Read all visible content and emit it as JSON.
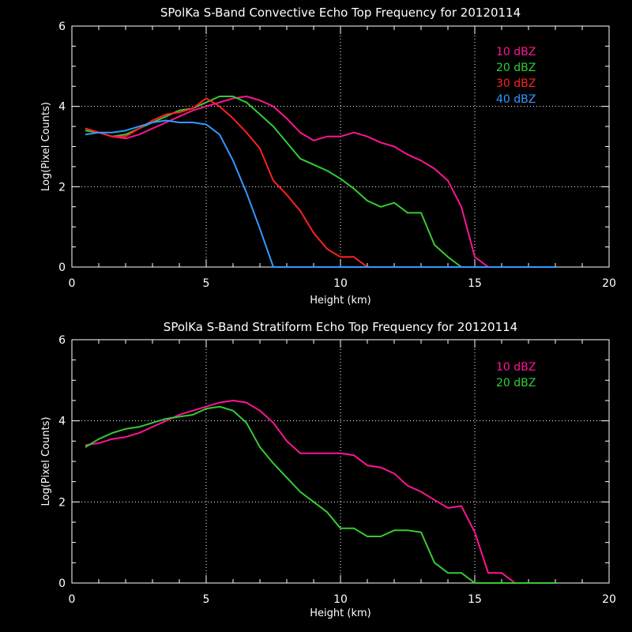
{
  "chart_data": [
    {
      "type": "line",
      "title": "SPolKa S-Band Convective Echo Top Frequency for 20120114",
      "xlabel": "Height (km)",
      "ylabel": "Log(Pixel Counts)",
      "xlim": [
        0,
        20
      ],
      "ylim": [
        0,
        6
      ],
      "xticks": [
        "0",
        "5",
        "10",
        "15",
        "20"
      ],
      "yticks": [
        "0",
        "2",
        "4",
        "6"
      ],
      "grid": "dotted, at x=5,10,15 and y=2,4",
      "legend_position": "top-right",
      "series": [
        {
          "name": "10 dBZ",
          "color": "#ff1493",
          "x": [
            0.5,
            1,
            1.5,
            2,
            2.5,
            3,
            3.5,
            4,
            4.5,
            5,
            5.5,
            6,
            6.5,
            7,
            7.5,
            8,
            8.5,
            9,
            9.5,
            10,
            10.5,
            11,
            11.5,
            12,
            12.5,
            13,
            13.5,
            14,
            14.5,
            15,
            15.5
          ],
          "y": [
            3.45,
            3.35,
            3.25,
            3.2,
            3.3,
            3.45,
            3.6,
            3.75,
            3.9,
            4.0,
            4.1,
            4.2,
            4.25,
            4.15,
            4.0,
            3.7,
            3.35,
            3.15,
            3.25,
            3.25,
            3.35,
            3.25,
            3.1,
            3.0,
            2.8,
            2.65,
            2.45,
            2.15,
            1.5,
            0.25,
            0
          ]
        },
        {
          "name": "20 dBZ",
          "color": "#33cc33",
          "x": [
            0.5,
            1,
            1.5,
            2,
            2.5,
            3,
            3.5,
            4,
            4.5,
            5,
            5.5,
            6,
            6.5,
            7,
            7.5,
            8,
            8.5,
            9,
            9.5,
            10,
            10.5,
            11,
            11.5,
            12,
            12.5,
            13,
            13.5,
            14,
            14.5
          ],
          "y": [
            3.4,
            3.35,
            3.25,
            3.3,
            3.45,
            3.6,
            3.75,
            3.9,
            3.95,
            4.1,
            4.25,
            4.25,
            4.1,
            3.8,
            3.5,
            3.1,
            2.7,
            2.55,
            2.4,
            2.2,
            1.95,
            1.65,
            1.5,
            1.6,
            1.35,
            1.35,
            0.55,
            0.25,
            0
          ]
        },
        {
          "name": "30 dBZ",
          "color": "#ff2020",
          "x": [
            0.5,
            1,
            1.5,
            2,
            2.5,
            3,
            3.5,
            4,
            4.5,
            5,
            5.5,
            6,
            6.5,
            7,
            7.5,
            8,
            8.5,
            9,
            9.5,
            10,
            10.5,
            11
          ],
          "y": [
            3.45,
            3.35,
            3.25,
            3.25,
            3.45,
            3.65,
            3.8,
            3.85,
            3.95,
            4.2,
            4.0,
            3.7,
            3.35,
            2.95,
            2.15,
            1.8,
            1.4,
            0.85,
            0.45,
            0.25,
            0.25,
            0
          ]
        },
        {
          "name": "40 dBZ",
          "color": "#3399ff",
          "x": [
            0.5,
            1,
            1.5,
            2,
            2.5,
            3,
            3.5,
            4,
            4.5,
            5,
            5.5,
            6,
            6.5,
            7,
            7.5,
            8,
            18
          ],
          "y": [
            3.3,
            3.35,
            3.35,
            3.4,
            3.5,
            3.6,
            3.65,
            3.6,
            3.6,
            3.55,
            3.3,
            2.65,
            1.85,
            0.95,
            0,
            0,
            0
          ]
        }
      ]
    },
    {
      "type": "line",
      "title": "SPolKa S-Band Stratiform Echo Top Frequency for 20120114",
      "xlabel": "Height (km)",
      "ylabel": "Log(Pixel Counts)",
      "xlim": [
        0,
        20
      ],
      "ylim": [
        0,
        6
      ],
      "xticks": [
        "0",
        "5",
        "10",
        "15",
        "20"
      ],
      "yticks": [
        "0",
        "2",
        "4",
        "6"
      ],
      "grid": "dotted, at x=5,10,15 and y=2,4",
      "legend_position": "top-right",
      "series": [
        {
          "name": "10 dBZ",
          "color": "#ff1493",
          "x": [
            0.5,
            1,
            1.5,
            2,
            2.5,
            3,
            3.5,
            4,
            4.5,
            5,
            5.5,
            6,
            6.5,
            7,
            7.5,
            8,
            8.5,
            9,
            9.5,
            10,
            10.5,
            11,
            11.5,
            12,
            12.5,
            13,
            13.5,
            14,
            14.5,
            15,
            15.5,
            16,
            16.5
          ],
          "y": [
            3.4,
            3.45,
            3.55,
            3.6,
            3.7,
            3.85,
            4.0,
            4.15,
            4.25,
            4.35,
            4.45,
            4.5,
            4.45,
            4.25,
            3.95,
            3.5,
            3.2,
            3.2,
            3.2,
            3.2,
            3.15,
            2.9,
            2.85,
            2.7,
            2.4,
            2.25,
            2.05,
            1.85,
            1.9,
            1.25,
            0.25,
            0.25,
            0
          ]
        },
        {
          "name": "20 dBZ",
          "color": "#33cc33",
          "x": [
            0.5,
            1,
            1.5,
            2,
            2.5,
            3,
            3.5,
            4,
            4.5,
            5,
            5.5,
            6,
            6.5,
            7,
            7.5,
            8,
            8.5,
            9,
            9.5,
            10,
            10.5,
            11,
            11.5,
            12,
            12.5,
            13,
            13.5,
            14,
            14.5,
            15,
            18
          ],
          "y": [
            3.35,
            3.55,
            3.7,
            3.8,
            3.85,
            3.95,
            4.05,
            4.1,
            4.15,
            4.3,
            4.35,
            4.25,
            3.95,
            3.35,
            2.95,
            2.6,
            2.25,
            2.0,
            1.75,
            1.35,
            1.35,
            1.15,
            1.15,
            1.3,
            1.3,
            1.25,
            0.5,
            0.25,
            0.25,
            0,
            0
          ]
        }
      ]
    }
  ]
}
